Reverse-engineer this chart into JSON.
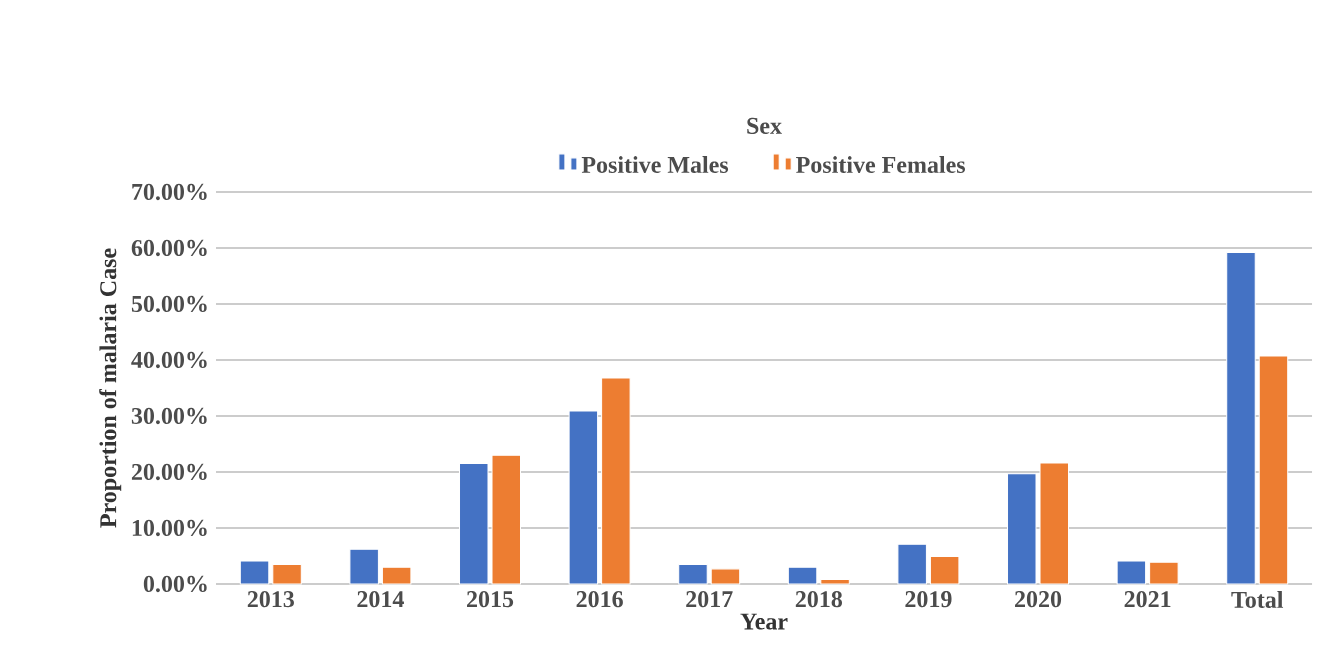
{
  "chart_data": {
    "type": "bar",
    "legend_title": "Sex",
    "xlabel": "Year",
    "ylabel": "Proportion of malaria Case",
    "categories": [
      "2013",
      "2014",
      "2015",
      "2016",
      "2017",
      "2018",
      "2019",
      "2020",
      "2021",
      "Total"
    ],
    "series": [
      {
        "name": "Positive Males",
        "color": "#4472c4",
        "values": [
          4.1,
          6.2,
          21.5,
          30.9,
          3.5,
          3.0,
          7.1,
          19.7,
          4.1,
          59.2
        ]
      },
      {
        "name": "Positive Females",
        "color": "#ed7d31",
        "values": [
          3.5,
          3.0,
          23.0,
          36.8,
          2.7,
          0.8,
          4.9,
          21.6,
          3.9,
          40.7
        ]
      }
    ],
    "ylim": [
      0,
      70
    ],
    "yticks": [
      {
        "value": 0,
        "label": "0.00%"
      },
      {
        "value": 10,
        "label": "10.00%"
      },
      {
        "value": 20,
        "label": "20.00%"
      },
      {
        "value": 30,
        "label": "30.00%"
      },
      {
        "value": 40,
        "label": "40.00%"
      },
      {
        "value": 50,
        "label": "50.00%"
      },
      {
        "value": 60,
        "label": "60.00%"
      },
      {
        "value": 70,
        "label": "70.00%"
      }
    ],
    "grid": "y",
    "legend": "top"
  }
}
